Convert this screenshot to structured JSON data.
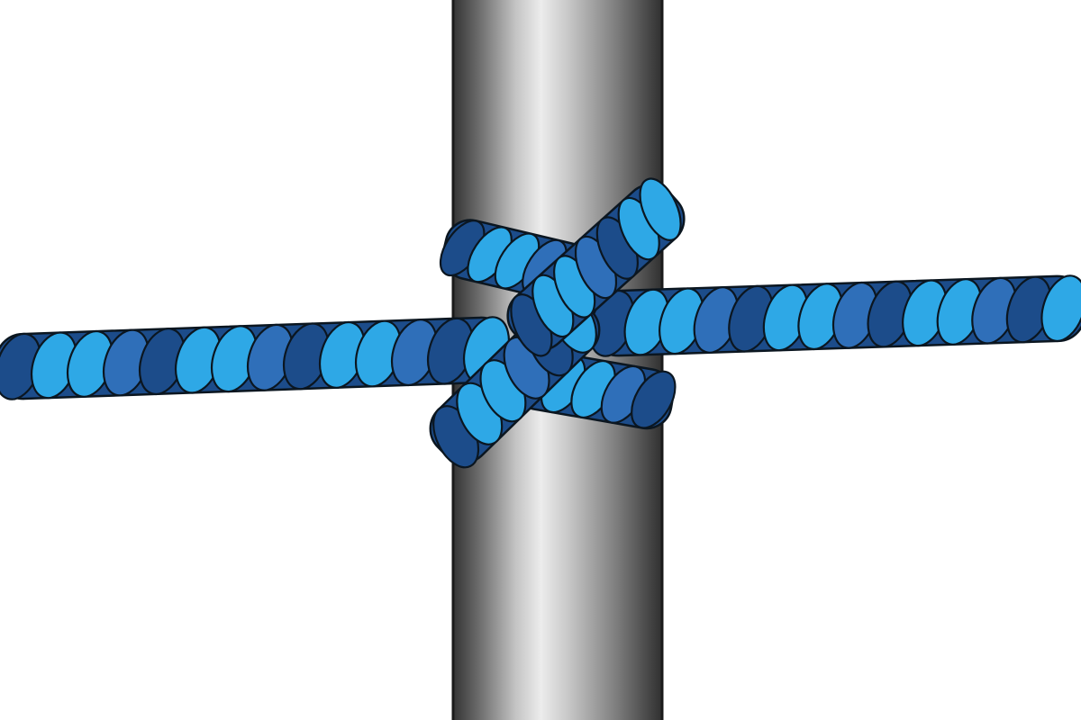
{
  "illustration": {
    "subject": "clove-hitch-knot",
    "colors": {
      "background": "#ffffff",
      "rope_dark": "#1c4c8a",
      "rope_mid": "#2f6fb9",
      "rope_light": "#2ea8e6",
      "rope_outline": "#0b1620",
      "pole_dark": "#333333",
      "pole_light": "#e9e9e9",
      "pole_outline": "#1a1a1a"
    }
  }
}
